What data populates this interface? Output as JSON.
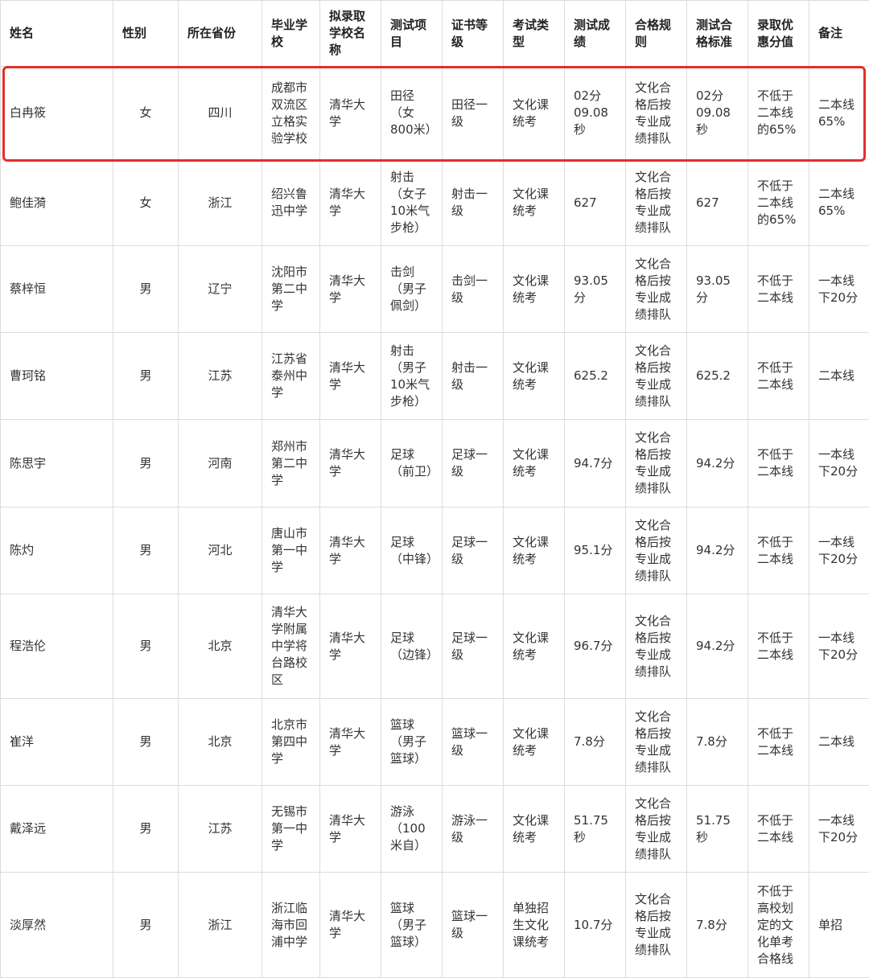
{
  "table": {
    "headers": [
      "姓名",
      "性别",
      "所在省份",
      "毕业学校",
      "拟录取学校名称",
      "测试项目",
      "证书等级",
      "考试类型",
      "测试成绩",
      "合格规则",
      "测试合格标准",
      "录取优惠分值",
      "备注"
    ],
    "rows": [
      [
        "白冉筱",
        "女",
        "四川",
        "成都市双流区立格实验学校",
        "清华大学",
        "田径（女800米）",
        "田径一级",
        "文化课统考",
        "02分09.08秒",
        "文化合格后按专业成绩排队",
        "02分09.08秒",
        "不低于二本线的65%",
        "二本线65%"
      ],
      [
        "鲍佳漪",
        "女",
        "浙江",
        "绍兴鲁迅中学",
        "清华大学",
        "射击（女子10米气步枪）",
        "射击一级",
        "文化课统考",
        "627",
        "文化合格后按专业成绩排队",
        "627",
        "不低于二本线的65%",
        "二本线65%"
      ],
      [
        "蔡梓恒",
        "男",
        "辽宁",
        "沈阳市第二中学",
        "清华大学",
        "击剑（男子佩剑）",
        "击剑一级",
        "文化课统考",
        "93.05分",
        "文化合格后按专业成绩排队",
        "93.05分",
        "不低于二本线",
        "一本线下20分"
      ],
      [
        "曹珂铭",
        "男",
        "江苏",
        "江苏省泰州中学",
        "清华大学",
        "射击（男子10米气步枪）",
        "射击一级",
        "文化课统考",
        "625.2",
        "文化合格后按专业成绩排队",
        "625.2",
        "不低于二本线",
        "二本线"
      ],
      [
        "陈思宇",
        "男",
        "河南",
        "郑州市第二中学",
        "清华大学",
        "足球（前卫）",
        "足球一级",
        "文化课统考",
        "94.7分",
        "文化合格后按专业成绩排队",
        "94.2分",
        "不低于二本线",
        "一本线下20分"
      ],
      [
        "陈灼",
        "男",
        "河北",
        "唐山市第一中学",
        "清华大学",
        "足球（中锋）",
        "足球一级",
        "文化课统考",
        "95.1分",
        "文化合格后按专业成绩排队",
        "94.2分",
        "不低于二本线",
        "一本线下20分"
      ],
      [
        "程浩伦",
        "男",
        "北京",
        "清华大学附属中学将台路校区",
        "清华大学",
        "足球（边锋）",
        "足球一级",
        "文化课统考",
        "96.7分",
        "文化合格后按专业成绩排队",
        "94.2分",
        "不低于二本线",
        "一本线下20分"
      ],
      [
        "崔洋",
        "男",
        "北京",
        "北京市第四中学",
        "清华大学",
        "篮球（男子篮球）",
        "篮球一级",
        "文化课统考",
        "7.8分",
        "文化合格后按专业成绩排队",
        "7.8分",
        "不低于二本线",
        "二本线"
      ],
      [
        "戴泽远",
        "男",
        "江苏",
        "无锡市第一中学",
        "清华大学",
        "游泳（100米自）",
        "游泳一级",
        "文化课统考",
        "51.75秒",
        "文化合格后按专业成绩排队",
        "51.75秒",
        "不低于二本线",
        "一本线下20分"
      ],
      [
        "淡厚然",
        "男",
        "浙江",
        "浙江临海市回浦中学",
        "清华大学",
        "篮球（男子篮球）",
        "篮球一级",
        "单独招生文化课统考",
        "10.7分",
        "文化合格后按专业成绩排队",
        "7.8分",
        "不低于高校划定的文化单考合格线",
        "单招"
      ]
    ]
  }
}
